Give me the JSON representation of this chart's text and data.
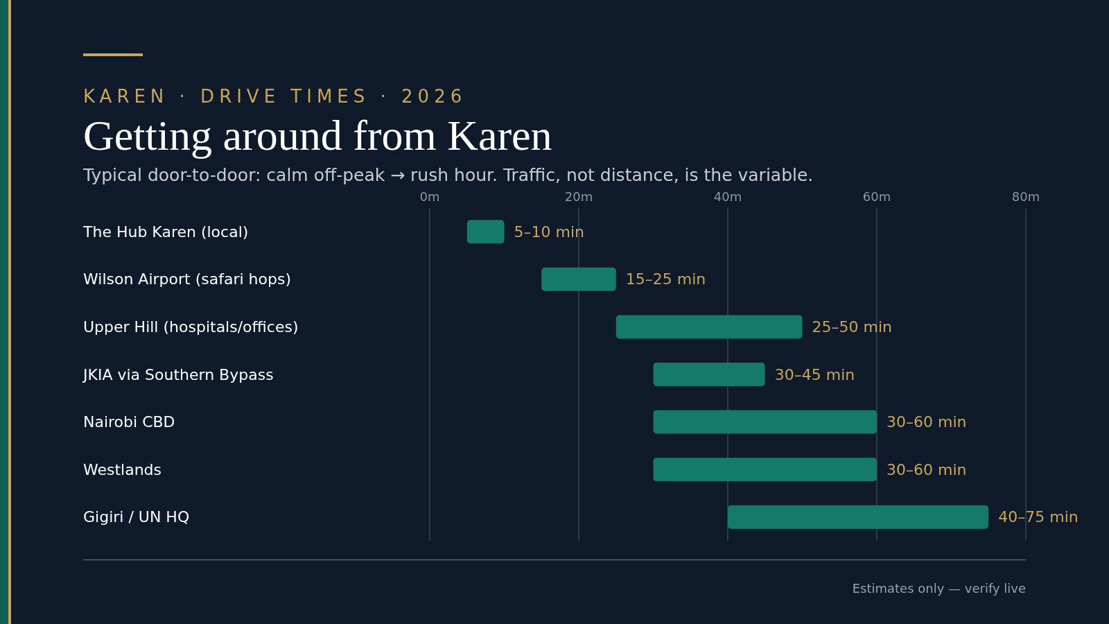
{
  "chart_data": {
    "type": "bar",
    "orientation": "horizontal",
    "title": "Getting around from Karen",
    "subtitle": "Typical door-to-door: calm off-peak → rush hour. Traffic, not distance, is the variable.",
    "annotations": [
      "KAREN · DRIVE TIMES · 2026",
      "Estimates only — verify live"
    ],
    "categories": [
      "The Hub Karen (local)",
      "Wilson Airport (safari hops)",
      "Upper Hill (hospitals/offices)",
      "JKIA via Southern Bypass",
      "Nairobi CBD",
      "Westlands",
      "Gigiri / UN HQ"
    ],
    "base": [
      5,
      15,
      25,
      30,
      30,
      30,
      40
    ],
    "values": [
      5,
      10,
      25,
      15,
      30,
      30,
      35
    ],
    "value_labels": [
      "5–10 min",
      "15–25 min",
      "25–50 min",
      "30–45 min",
      "30–60 min",
      "30–60 min",
      "40–75 min"
    ],
    "color": "#147a6a",
    "xlim": [
      0,
      80
    ],
    "xticks": [
      {
        "value": 0,
        "label": "0m"
      },
      {
        "value": 20,
        "label": "20m"
      },
      {
        "value": 40,
        "label": "40m"
      },
      {
        "value": 60,
        "label": "60m"
      },
      {
        "value": 80,
        "label": "80m"
      }
    ],
    "grid": "x"
  }
}
